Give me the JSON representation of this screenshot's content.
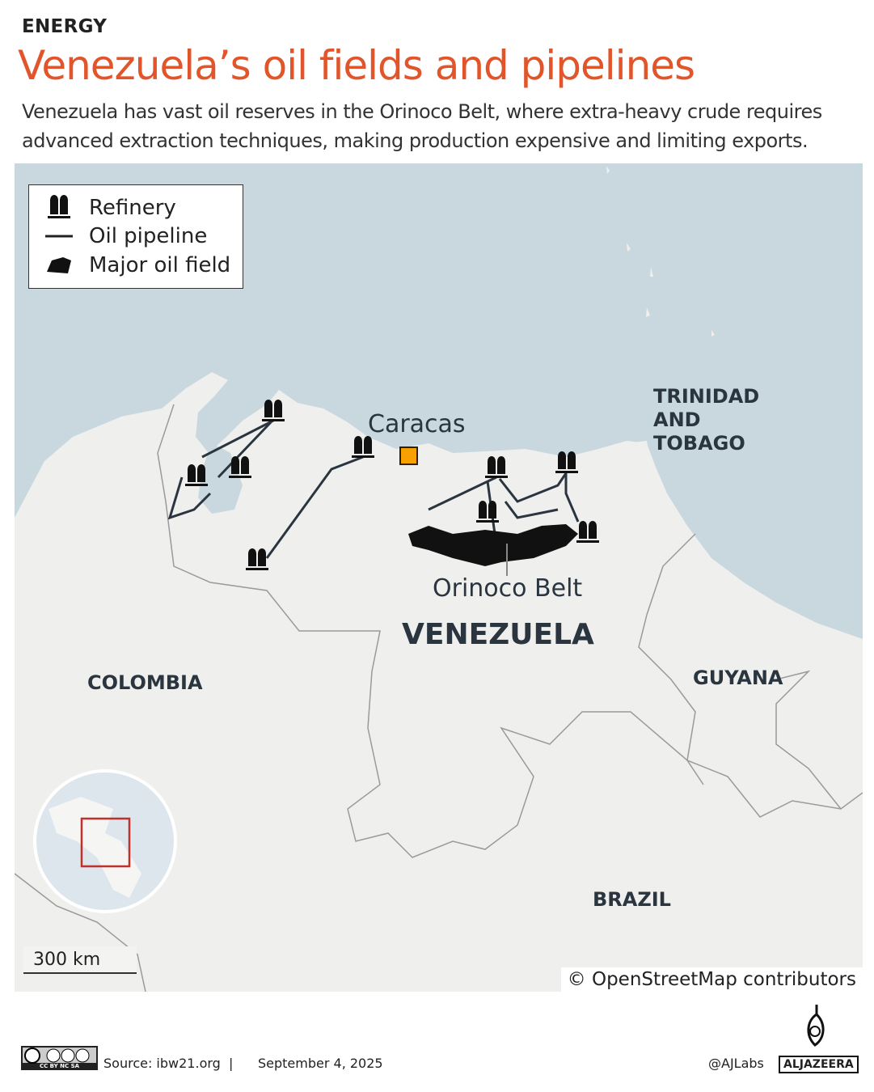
{
  "header": {
    "category": "ENERGY",
    "title": "Venezuela’s oil fields and pipelines",
    "subtitle": "Venezuela has vast oil reserves in the Orinoco Belt, where extra-heavy crude requires advanced extraction techniques, making production expensive and limiting exports."
  },
  "legend": {
    "items": [
      {
        "icon": "refinery-icon",
        "label": "Refinery"
      },
      {
        "icon": "pipeline-line-icon",
        "label": "Oil pipeline"
      },
      {
        "icon": "oil-field-icon",
        "label": "Major oil field"
      }
    ]
  },
  "map": {
    "colors": {
      "sea": "#c9d7df",
      "land": "#efefed",
      "border": "#9a9a9a",
      "feature": "#111111",
      "capital": "#f7a000",
      "accent": "#e2552a",
      "inset_box": "#c0312b"
    },
    "labels": {
      "capital": "Caracas",
      "oil_field": "Orinoco Belt",
      "venezuela": "VENEZUELA",
      "colombia": "COLOMBIA",
      "guyana": "GUYANA",
      "trinidad": [
        "TRINIDAD",
        "AND",
        "TOBAGO"
      ],
      "brazil": "BRAZIL"
    },
    "scale": "300 km",
    "attribution": "© OpenStreetMap contributors"
  },
  "footer": {
    "license": "CC BY NC SA",
    "source": "Source: ibw21.org",
    "separator": "|",
    "date": "September 4, 2025",
    "handle": "@AJLabs",
    "brand": "ALJAZEERA"
  }
}
